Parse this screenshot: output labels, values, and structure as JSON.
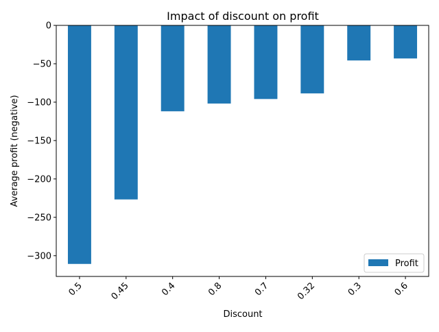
{
  "chart_data": {
    "type": "bar",
    "title": "Impact of discount on profit",
    "xlabel": "Discount",
    "ylabel": "Average profit (negative)",
    "categories": [
      "0.5",
      "0.45",
      "0.4",
      "0.8",
      "0.7",
      "0.32",
      "0.3",
      "0.6"
    ],
    "series": [
      {
        "name": "Profit",
        "values": [
          -310.7,
          -226.7,
          -111.9,
          -101.8,
          -95.9,
          -88.6,
          -45.7,
          -43.1
        ]
      }
    ],
    "ylim": [
      -327,
      0
    ],
    "yticks": [
      0,
      -50,
      -100,
      -150,
      -200,
      -250,
      -300
    ],
    "ytick_labels": [
      "0",
      "−50",
      "−100",
      "−150",
      "−200",
      "−250",
      "−300"
    ],
    "legend_position": "lower right",
    "grid": false,
    "bar_color": "#1f77b4"
  }
}
